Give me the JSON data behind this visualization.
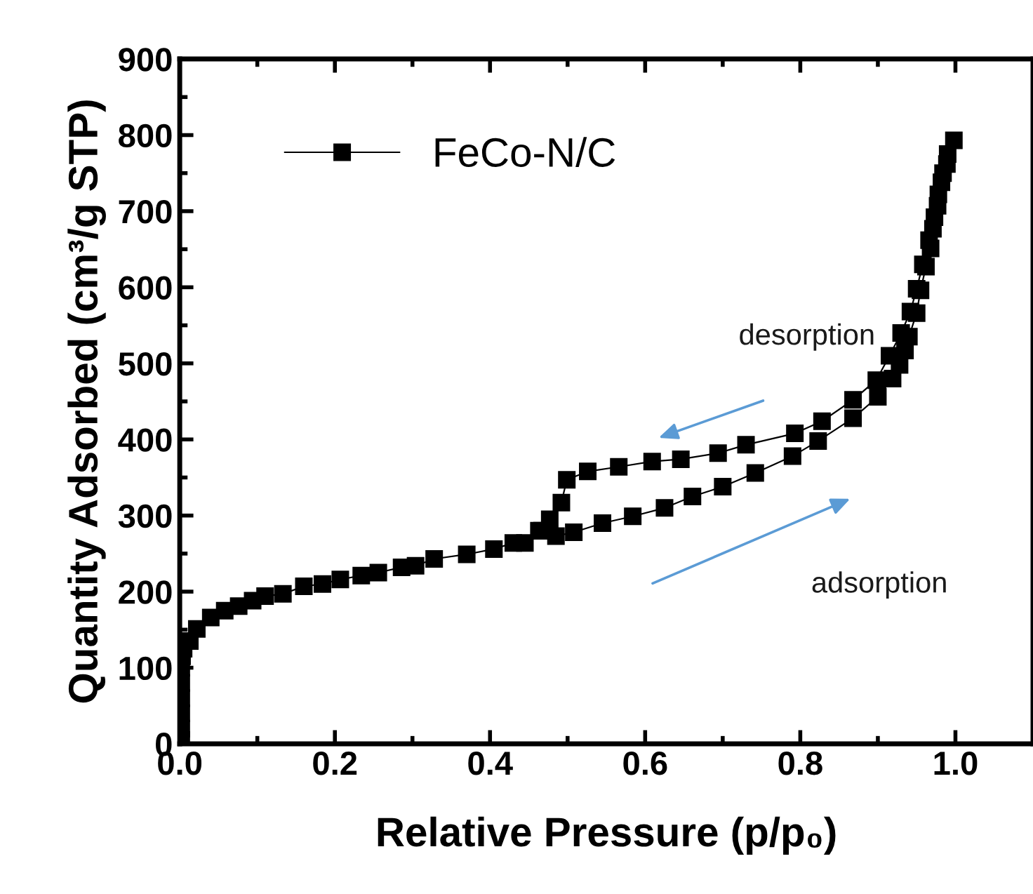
{
  "chart_data": {
    "type": "line",
    "xlabel": "Relative Pressure (p/p₀)",
    "ylabel": "Quantity Adsorbed (cm³/g STP)",
    "xlim": [
      0,
      1.1
    ],
    "ylim": [
      0,
      900
    ],
    "xticks": [
      {
        "value": 0,
        "label": "0.0"
      },
      {
        "value": 0.1,
        "label": null
      },
      0.2,
      {
        "value": 0.3,
        "label": null
      },
      0.4,
      {
        "value": 0.5,
        "label": null
      },
      0.6,
      {
        "value": 0.7,
        "label": null
      },
      0.8,
      {
        "value": 0.9,
        "label": null
      },
      {
        "value": 1,
        "label": "1.0"
      }
    ],
    "yticks": [
      0,
      {
        "value": 50,
        "label": null
      },
      100,
      {
        "value": 150,
        "label": null
      },
      200,
      {
        "value": 250,
        "label": null
      },
      300,
      {
        "value": 350,
        "label": null
      },
      400,
      {
        "value": 450,
        "label": null
      },
      500,
      {
        "value": 550,
        "label": null
      },
      600,
      {
        "value": 650,
        "label": null
      },
      700,
      {
        "value": 750,
        "label": null
      },
      800,
      {
        "value": 850,
        "label": null
      },
      900
    ],
    "marker": "square",
    "line_style": "solid",
    "legend": "top left",
    "grid": false,
    "series": [
      {
        "name": "FeCo-N/C",
        "color": "#000000",
        "x": [
          0.002,
          0.002,
          0.002,
          0.002,
          0.002,
          0.002,
          0.003,
          0.005,
          0.013,
          0.022,
          0.04,
          0.058,
          0.076,
          0.094,
          0.11,
          0.133,
          0.16,
          0.184,
          0.207,
          0.234,
          0.256,
          0.286,
          0.304,
          0.328,
          0.37,
          0.405,
          0.43,
          0.445,
          0.467,
          0.485,
          0.508,
          0.545,
          0.584,
          0.625,
          0.661,
          0.7,
          0.742,
          0.79,
          0.823,
          0.868,
          0.9,
          0.919,
          0.928,
          0.935,
          0.94,
          0.95,
          0.955,
          0.962,
          0.968,
          0.971,
          0.977,
          0.982,
          0.989,
          0.998,
          0.99,
          0.984,
          0.978,
          0.973,
          0.966,
          0.958,
          0.95,
          0.942,
          0.93,
          0.915,
          0.898,
          0.868,
          0.828,
          0.793,
          0.73,
          0.694,
          0.646,
          0.609,
          0.566,
          0.526,
          0.499,
          0.492,
          0.477,
          0.463
        ],
        "values": [
          5,
          20,
          40,
          60,
          80,
          100,
          115,
          125,
          135,
          151,
          166,
          175,
          181,
          188,
          194,
          197,
          207,
          210,
          216,
          221,
          225,
          232,
          234,
          243,
          249,
          256,
          264,
          264,
          280,
          273,
          278,
          290,
          299,
          310,
          325,
          338,
          356,
          378,
          398,
          428,
          456,
          480,
          498,
          517,
          535,
          566,
          596,
          627,
          651,
          677,
          707,
          738,
          762,
          793,
          775,
          750,
          722,
          692,
          662,
          630,
          598,
          568,
          540,
          510,
          478,
          452,
          424,
          408,
          393,
          382,
          374,
          371,
          364,
          358,
          347,
          317,
          295,
          280
        ]
      }
    ],
    "annotations": [
      "desorption",
      "adsorption"
    ]
  }
}
